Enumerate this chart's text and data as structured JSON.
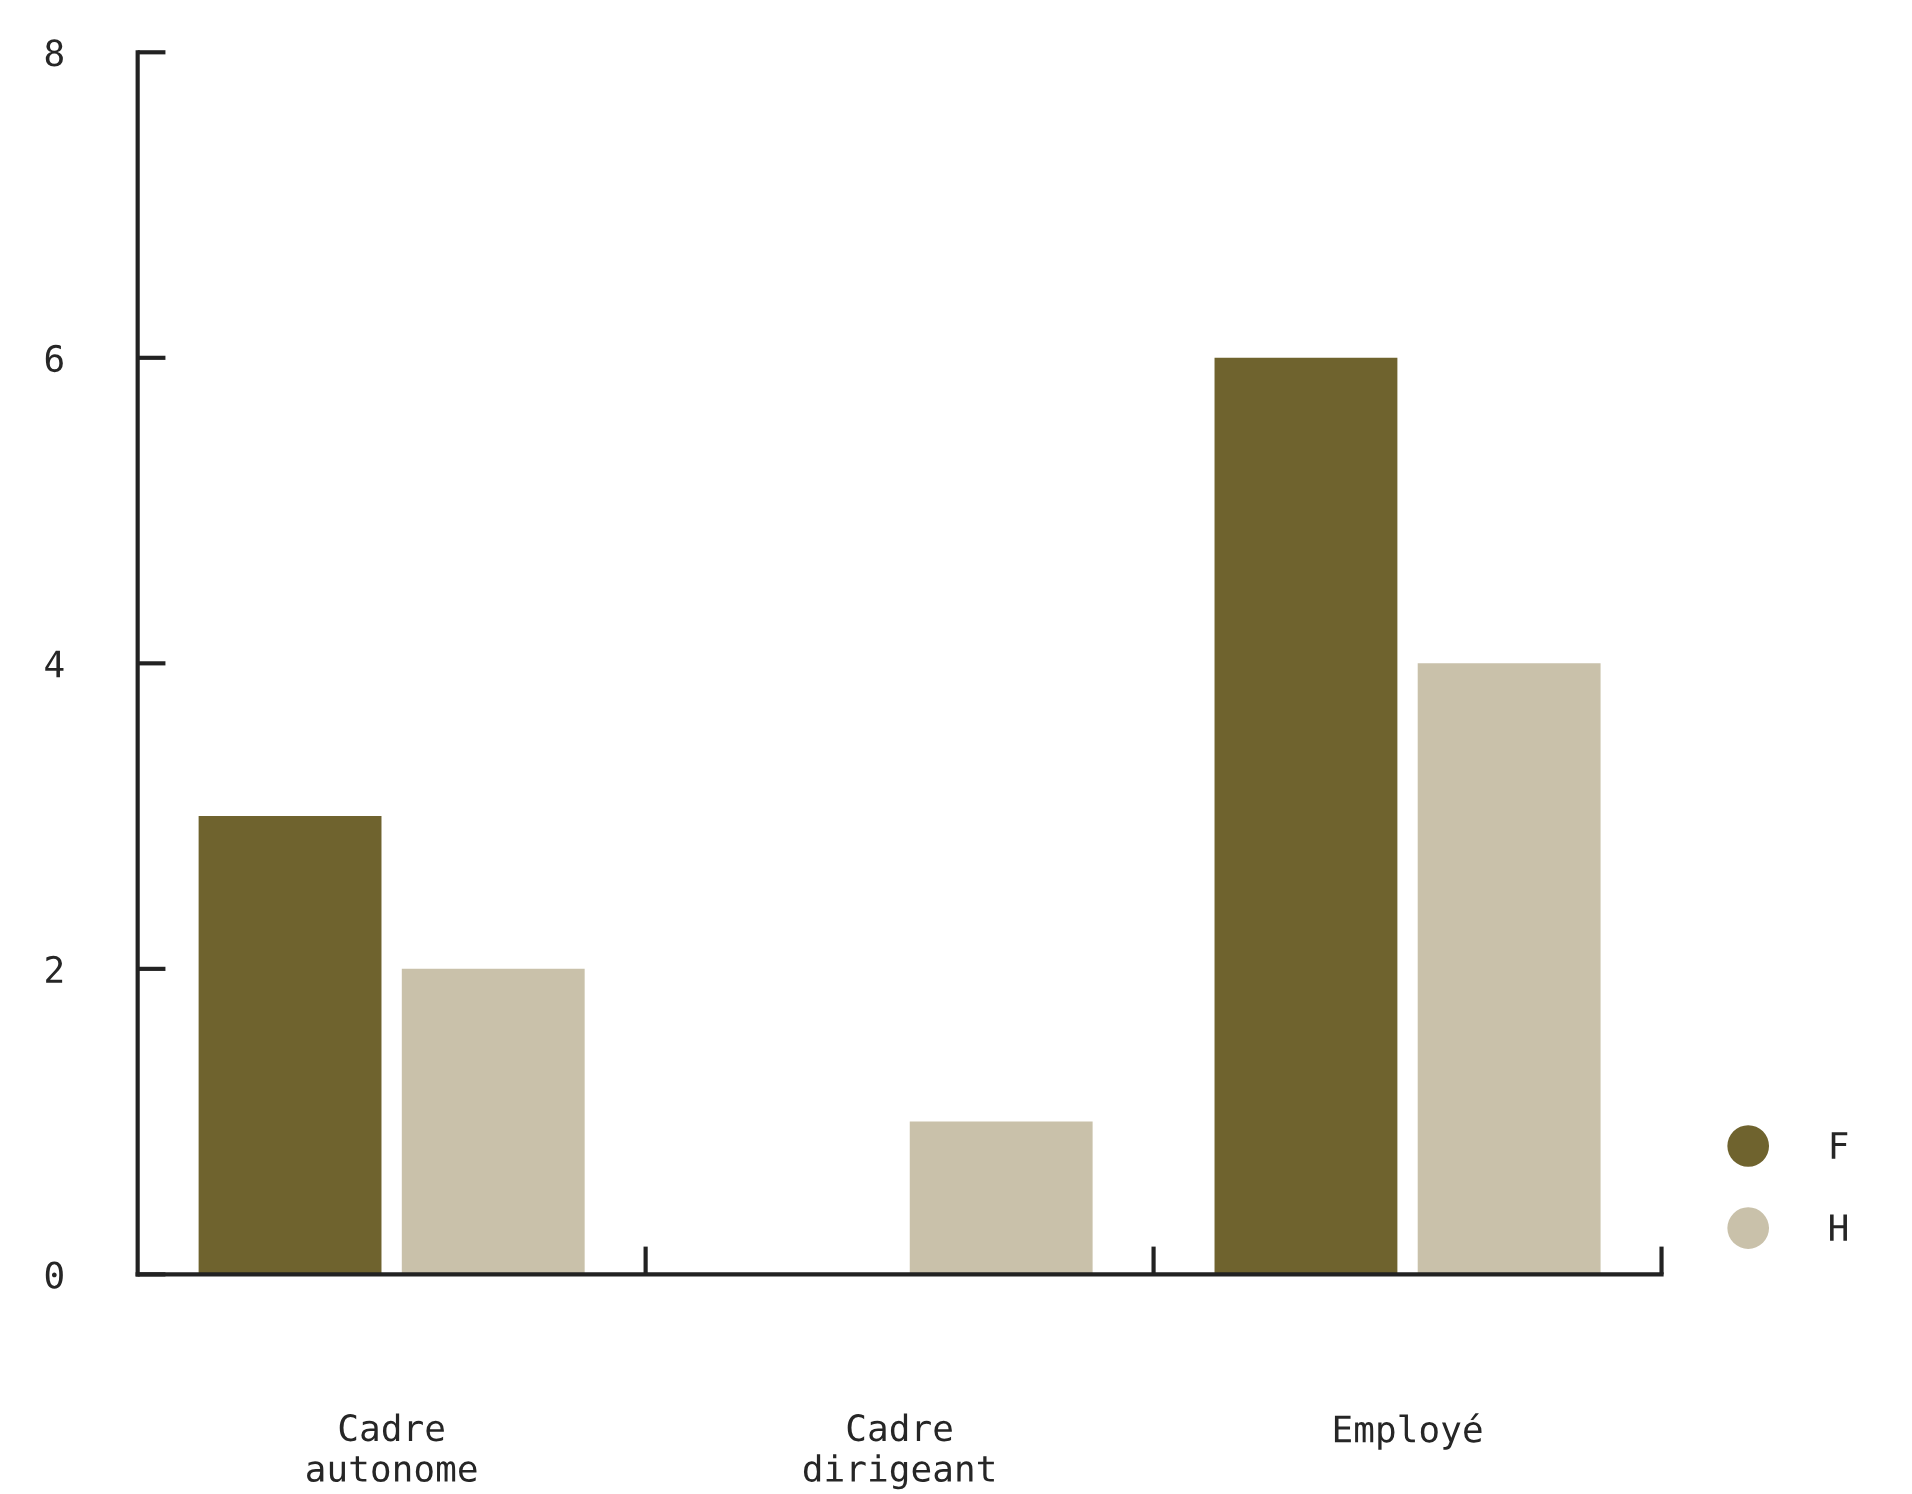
{
  "chart_data": {
    "type": "bar",
    "categories": [
      "Cadre\nautonome",
      "Cadre\ndirigeant",
      "Employé"
    ],
    "series": [
      {
        "name": "F",
        "color": "#6f632e",
        "values": [
          3,
          0,
          6
        ]
      },
      {
        "name": "H",
        "color": "#c9c1aa",
        "values": [
          2,
          1,
          4
        ]
      }
    ],
    "ylim": [
      0,
      8
    ],
    "yticks": [
      0,
      2,
      4,
      6,
      8
    ],
    "grid": false,
    "legend": "bottom right"
  }
}
